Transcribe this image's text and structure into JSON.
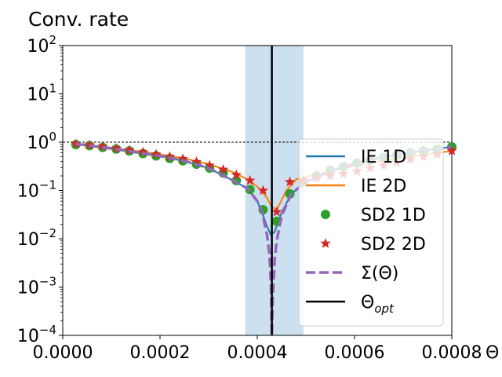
{
  "chart_data": {
    "type": "line",
    "title": "Conv. rate",
    "xlabel": "Θ",
    "ylabel": "",
    "xlim": [
      0,
      0.0008
    ],
    "ylim_log10": [
      -4,
      2
    ],
    "yscale": "log",
    "x_ticks": [
      0,
      0.0002,
      0.0004,
      0.0006,
      0.0008
    ],
    "x_tick_labels": [
      "0.0000",
      "0.0002",
      "0.0004",
      "0.0006",
      "0.0008"
    ],
    "y_tick_exponents": [
      -4,
      -3,
      -2,
      -1,
      0,
      1,
      2
    ],
    "y_tick_base": "10",
    "reference_line_y": 1,
    "shaded_band_x": [
      0.000375,
      0.000495
    ],
    "theta_opt": 0.00043,
    "legend_position": "lower-right",
    "colors": {
      "ie1d": "#1f77b4",
      "ie2d": "#ff7f0e",
      "sd2_1d": "#2ca02c",
      "sd2_2d": "#d62728",
      "sigma": "#9467bd",
      "opt": "#000000",
      "band": "#bcd6ea"
    },
    "legend": [
      {
        "key": "ie1d",
        "label": "IE 1D",
        "style": "line"
      },
      {
        "key": "ie2d",
        "label": "IE 2D",
        "style": "line"
      },
      {
        "key": "sd2_1d",
        "label": "SD2 1D",
        "style": "circle"
      },
      {
        "key": "sd2_2d",
        "label": "SD2 2D",
        "style": "star"
      },
      {
        "key": "sigma",
        "label": "Σ(Θ)",
        "style": "dash"
      },
      {
        "key": "opt",
        "label": "Θ",
        "sub": "opt",
        "style": "line"
      }
    ],
    "series": [
      {
        "name": "IE 1D",
        "key": "ie1d",
        "x": [
          2.7e-05,
          5e-05,
          0.0001,
          0.00015,
          0.0002,
          0.00025,
          0.0003,
          0.00035,
          0.00038,
          0.0004,
          0.00041,
          0.00042,
          0.000428,
          0.000436,
          0.00045,
          0.00047,
          0.0005,
          0.00055,
          0.0006,
          0.00065,
          0.0007,
          0.00075,
          0.0008
        ],
        "y": [
          0.92,
          0.86,
          0.74,
          0.62,
          0.52,
          0.41,
          0.29,
          0.16,
          0.11,
          0.06,
          0.035,
          0.018,
          0.012,
          0.014,
          0.035,
          0.085,
          0.15,
          0.25,
          0.36,
          0.47,
          0.58,
          0.69,
          0.8
        ]
      },
      {
        "name": "IE 2D",
        "key": "ie2d",
        "x": [
          2.7e-05,
          5e-05,
          0.0001,
          0.00015,
          0.0002,
          0.00025,
          0.0003,
          0.00035,
          0.00038,
          0.0004,
          0.00042,
          0.00043,
          0.00044,
          0.00046,
          0.00048,
          0.0005,
          0.00055,
          0.0006,
          0.00065,
          0.0007,
          0.00075,
          0.0008
        ],
        "y": [
          0.93,
          0.88,
          0.77,
          0.66,
          0.56,
          0.46,
          0.35,
          0.24,
          0.17,
          0.12,
          0.07,
          0.045,
          0.04,
          0.1,
          0.17,
          0.19,
          0.25,
          0.32,
          0.4,
          0.48,
          0.56,
          0.66
        ]
      },
      {
        "name": "SD2 1D",
        "key": "sd2_1d",
        "x": [
          2.7e-05,
          5.5e-05,
          8.2e-05,
          0.00011,
          0.000137,
          0.000165,
          0.000192,
          0.00022,
          0.000247,
          0.000275,
          0.000302,
          0.00033,
          0.000357,
          0.000385,
          0.000412,
          0.00044,
          0.000467,
          0.000495,
          0.000522,
          0.00055,
          0.000577,
          0.000605,
          0.000632,
          0.00066,
          0.000687,
          0.000715,
          0.000742,
          0.00077,
          0.0008
        ],
        "y": [
          0.89,
          0.85,
          0.78,
          0.72,
          0.66,
          0.58,
          0.52,
          0.46,
          0.41,
          0.35,
          0.29,
          0.23,
          0.16,
          0.105,
          0.04,
          0.023,
          0.085,
          0.15,
          0.2,
          0.26,
          0.31,
          0.37,
          0.42,
          0.48,
          0.54,
          0.6,
          0.66,
          0.72,
          0.8
        ]
      },
      {
        "name": "SD2 2D",
        "key": "sd2_2d",
        "x": [
          2.7e-05,
          5.5e-05,
          8.2e-05,
          0.00011,
          0.000137,
          0.000165,
          0.000192,
          0.00022,
          0.000247,
          0.000275,
          0.000302,
          0.00033,
          0.000357,
          0.000385,
          0.000412,
          0.00044,
          0.000467,
          0.000495,
          0.000522,
          0.00055,
          0.000577,
          0.000605,
          0.000632,
          0.00066,
          0.000687,
          0.000715,
          0.000742,
          0.00077,
          0.0008
        ],
        "y": [
          0.92,
          0.87,
          0.81,
          0.74,
          0.68,
          0.62,
          0.56,
          0.5,
          0.45,
          0.39,
          0.33,
          0.27,
          0.21,
          0.16,
          0.1,
          0.036,
          0.15,
          0.16,
          0.18,
          0.2,
          0.22,
          0.25,
          0.29,
          0.33,
          0.38,
          0.44,
          0.5,
          0.56,
          0.66
        ]
      },
      {
        "name": "Σ(Θ)",
        "key": "sigma",
        "x": [
          2.7e-05,
          5e-05,
          0.0001,
          0.00015,
          0.0002,
          0.00025,
          0.0003,
          0.00035,
          0.00038,
          0.0004,
          0.00041,
          0.00042,
          0.000425,
          0.000428,
          0.00043,
          0.000432,
          0.000436,
          0.00044,
          0.00045,
          0.00047,
          0.0005,
          0.00055,
          0.0006,
          0.00065,
          0.0007,
          0.00075,
          0.0008
        ],
        "y": [
          0.92,
          0.86,
          0.74,
          0.62,
          0.52,
          0.41,
          0.29,
          0.16,
          0.11,
          0.06,
          0.035,
          0.012,
          0.005,
          0.0012,
          0.0001,
          0.0006,
          0.004,
          0.009,
          0.03,
          0.085,
          0.15,
          0.25,
          0.36,
          0.47,
          0.58,
          0.69,
          0.8
        ]
      }
    ]
  }
}
